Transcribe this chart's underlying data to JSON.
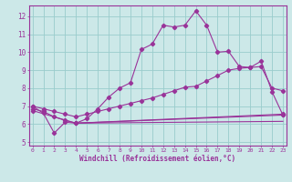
{
  "xlabel": "Windchill (Refroidissement éolien,°C)",
  "background_color": "#cce8e8",
  "grid_color": "#99cccc",
  "line_color": "#993399",
  "spine_color": "#993399",
  "tick_color": "#993399",
  "label_color": "#993399",
  "series1_x": [
    0,
    1,
    2,
    3,
    4,
    5,
    6,
    7,
    8,
    9,
    10,
    11,
    12,
    13,
    14,
    15,
    16,
    17,
    18,
    19,
    20,
    21,
    22,
    23
  ],
  "series1_y": [
    7.0,
    6.6,
    5.5,
    6.1,
    6.05,
    6.3,
    6.85,
    7.5,
    8.0,
    8.3,
    10.15,
    10.45,
    11.5,
    11.4,
    11.5,
    12.3,
    11.5,
    10.0,
    10.05,
    9.2,
    9.15,
    9.5,
    7.8,
    6.5
  ],
  "series2_x": [
    0,
    1,
    2,
    3,
    4,
    5,
    6,
    7,
    8,
    9,
    10,
    11,
    12,
    13,
    14,
    15,
    16,
    17,
    18,
    19,
    20,
    21,
    22,
    23
  ],
  "series2_y": [
    7.0,
    6.85,
    6.7,
    6.55,
    6.4,
    6.55,
    6.7,
    6.85,
    7.0,
    7.15,
    7.3,
    7.45,
    7.65,
    7.85,
    8.05,
    8.1,
    8.4,
    8.7,
    9.0,
    9.1,
    9.15,
    9.2,
    8.0,
    7.85
  ],
  "series3_x": [
    0,
    1,
    2,
    3,
    4,
    23
  ],
  "series3_y": [
    6.85,
    6.7,
    6.4,
    6.2,
    6.05,
    6.55
  ],
  "series4_x": [
    0,
    4,
    23
  ],
  "series4_y": [
    6.75,
    6.05,
    6.5
  ],
  "series5_x": [
    4,
    23
  ],
  "series5_y": [
    6.05,
    6.15
  ],
  "ylim": [
    4.8,
    12.6
  ],
  "xlim": [
    -0.3,
    23.3
  ],
  "yticks": [
    5,
    6,
    7,
    8,
    9,
    10,
    11,
    12
  ],
  "xticks": [
    0,
    1,
    2,
    3,
    4,
    5,
    6,
    7,
    8,
    9,
    10,
    11,
    12,
    13,
    14,
    15,
    16,
    17,
    18,
    19,
    20,
    21,
    22,
    23
  ]
}
